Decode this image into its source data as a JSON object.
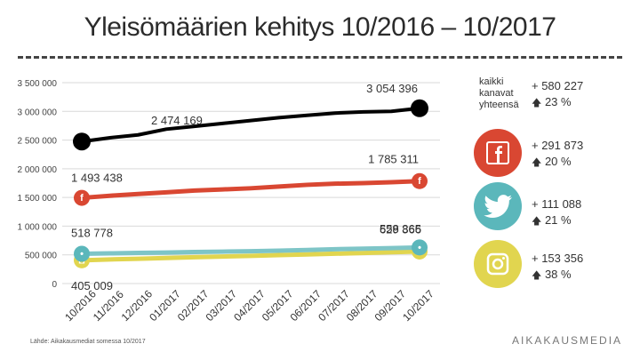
{
  "title": "Yleisömäärien kehitys 10/2016 – 10/2017",
  "source": "Lähde: Aikakausmediat somessa 10/2017",
  "brand": "AIKAKAUSMEDIA",
  "total": {
    "label_lines": [
      "kaikki",
      "kanavat",
      "yhteensä"
    ],
    "delta": "+ 580 227",
    "pct": "23 %"
  },
  "channels": [
    {
      "name": "facebook",
      "color": "#d94732",
      "icon": "facebook-icon",
      "delta": "+ 291 873",
      "pct": "20 %"
    },
    {
      "name": "twitter",
      "color": "#5bb7bb",
      "icon": "twitter-icon",
      "delta": "+ 111 088",
      "pct": "21 %"
    },
    {
      "name": "instagram",
      "color": "#e1d54f",
      "icon": "instagram-icon",
      "delta": "+ 153 356",
      "pct": "38 %"
    }
  ],
  "colors": {
    "total": "#000000",
    "facebook": "#d94732",
    "twitter": "#7ec5c7",
    "instagram": "#e1d54f",
    "grid": "#d9d9d9"
  },
  "chart_data": {
    "type": "line",
    "title": "Yleisömäärien kehitys 10/2016 – 10/2017",
    "categories": [
      "10/2016",
      "11/2016",
      "12/2016",
      "01/2017",
      "02/2017",
      "03/2017",
      "04/2017",
      "05/2017",
      "06/2017",
      "07/2017",
      "08/2017",
      "09/2017",
      "10/2017"
    ],
    "ylim": [
      0,
      3500000
    ],
    "yticks": [
      0,
      500000,
      1000000,
      1500000,
      2000000,
      2500000,
      3000000,
      3500000
    ],
    "ytick_labels": [
      "0",
      "500 000",
      "1 000 000",
      "1 500 000",
      "2 000 000",
      "2 500 000",
      "3 000 000",
      "3 500 000"
    ],
    "series": [
      {
        "name": "kaikki kanavat yhteensä",
        "color": "#000000",
        "values": [
          2474169,
          2540000,
          2590000,
          2690000,
          2740000,
          2790000,
          2840000,
          2890000,
          2930000,
          2970000,
          2990000,
          3000000,
          3054396
        ],
        "start_label": "2 474 169",
        "end_label": "3 054 396"
      },
      {
        "name": "Facebook",
        "color": "#d94732",
        "values": [
          1493438,
          1530000,
          1560000,
          1590000,
          1620000,
          1640000,
          1660000,
          1690000,
          1720000,
          1740000,
          1750000,
          1765000,
          1785311
        ],
        "start_label": "1 493 438",
        "end_label": "1 785 311"
      },
      {
        "name": "Twitter",
        "color": "#7ec5c7",
        "values": [
          518778,
          526000,
          534000,
          541000,
          549000,
          556000,
          564000,
          573000,
          585000,
          598000,
          608000,
          618000,
          629866
        ],
        "start_label": "518 778",
        "end_label": "629 866"
      },
      {
        "name": "Instagram",
        "color": "#e1d54f",
        "values": [
          405009,
          420000,
          432000,
          445000,
          458000,
          470000,
          482000,
          495000,
          508000,
          520000,
          533000,
          546000,
          558365
        ],
        "start_label": "405 009",
        "end_label": "558 365"
      }
    ]
  }
}
